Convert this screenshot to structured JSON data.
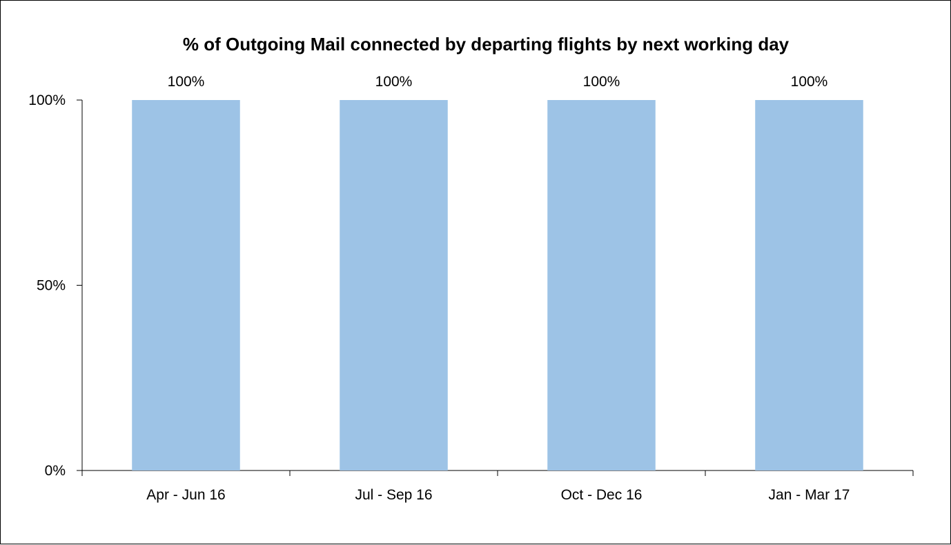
{
  "chart_data": {
    "type": "bar",
    "title": "% of Outgoing Mail connected by departing flights by next working day",
    "categories": [
      "Apr - Jun 16",
      "Jul - Sep 16",
      "Oct - Dec 16",
      "Jan - Mar 17"
    ],
    "values": [
      100,
      100,
      100,
      100
    ],
    "data_labels": [
      "100%",
      "100%",
      "100%",
      "100%"
    ],
    "y_ticks": [
      0,
      50,
      100
    ],
    "y_tick_labels": [
      "0%",
      "50%",
      "100%"
    ],
    "ylim": [
      0,
      100
    ],
    "xlabel": "",
    "ylabel": "",
    "grid": false,
    "legend": "none",
    "bar_color": "#9dc3e6"
  }
}
